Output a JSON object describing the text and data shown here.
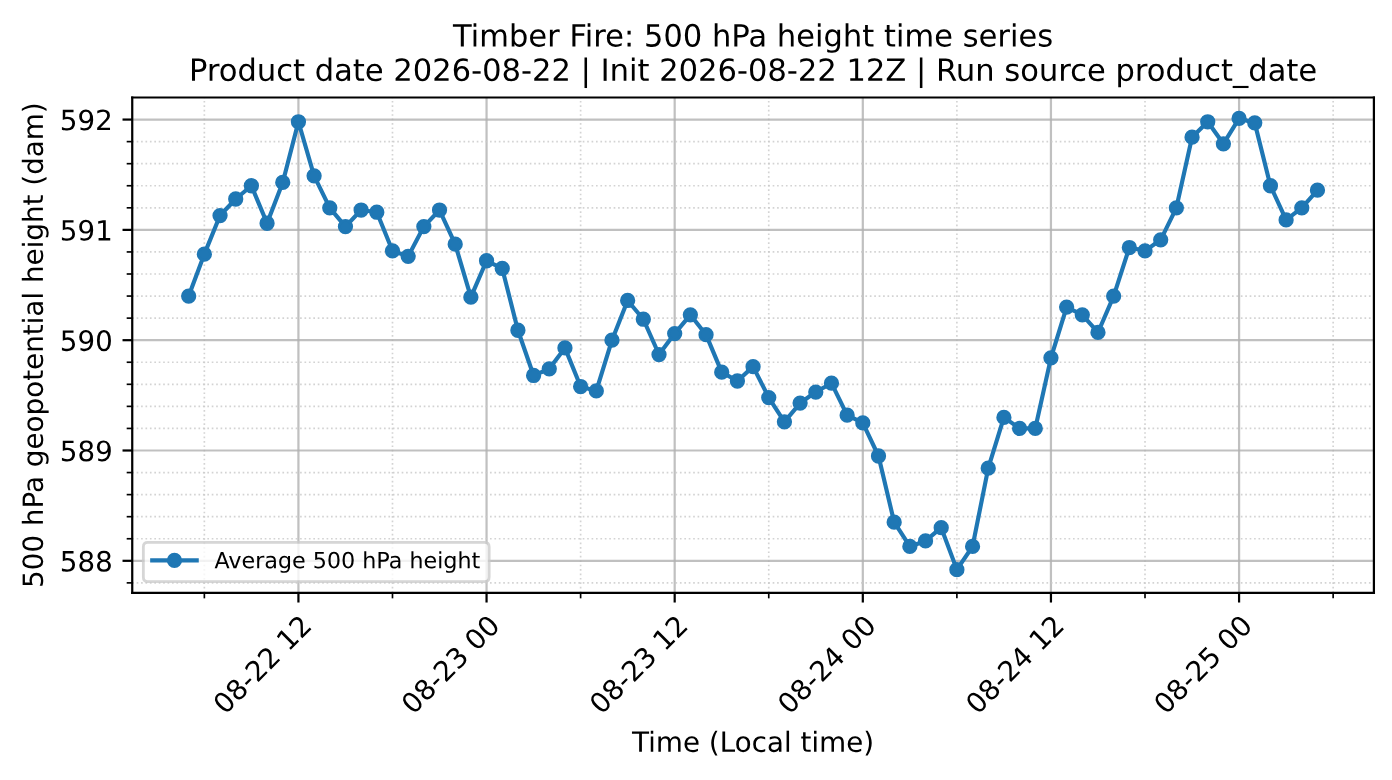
{
  "chart_data": {
    "type": "line",
    "title": "Timber Fire: 500 hPa height time series\nProduct date 2026-08-22 | Init 2026-08-22 12Z | Run source product_date",
    "xlabel": "Time (Local time)",
    "ylabel": "500 hPa geopotential height (dam)",
    "x": [
      "2026-08-22T05:00",
      "2026-08-22T06:00",
      "2026-08-22T07:00",
      "2026-08-22T08:00",
      "2026-08-22T09:00",
      "2026-08-22T10:00",
      "2026-08-22T11:00",
      "2026-08-22T12:00",
      "2026-08-22T13:00",
      "2026-08-22T14:00",
      "2026-08-22T15:00",
      "2026-08-22T16:00",
      "2026-08-22T17:00",
      "2026-08-22T18:00",
      "2026-08-22T19:00",
      "2026-08-22T20:00",
      "2026-08-22T21:00",
      "2026-08-22T22:00",
      "2026-08-22T23:00",
      "2026-08-23T00:00",
      "2026-08-23T01:00",
      "2026-08-23T02:00",
      "2026-08-23T03:00",
      "2026-08-23T04:00",
      "2026-08-23T05:00",
      "2026-08-23T06:00",
      "2026-08-23T07:00",
      "2026-08-23T08:00",
      "2026-08-23T09:00",
      "2026-08-23T10:00",
      "2026-08-23T11:00",
      "2026-08-23T12:00",
      "2026-08-23T13:00",
      "2026-08-23T14:00",
      "2026-08-23T15:00",
      "2026-08-23T16:00",
      "2026-08-23T17:00",
      "2026-08-23T18:00",
      "2026-08-23T19:00",
      "2026-08-23T20:00",
      "2026-08-23T21:00",
      "2026-08-23T22:00",
      "2026-08-23T23:00",
      "2026-08-24T00:00",
      "2026-08-24T01:00",
      "2026-08-24T02:00",
      "2026-08-24T03:00",
      "2026-08-24T04:00",
      "2026-08-24T05:00",
      "2026-08-24T06:00",
      "2026-08-24T07:00",
      "2026-08-24T08:00",
      "2026-08-24T09:00",
      "2026-08-24T10:00",
      "2026-08-24T11:00",
      "2026-08-24T12:00",
      "2026-08-24T13:00",
      "2026-08-24T14:00",
      "2026-08-24T15:00",
      "2026-08-24T16:00",
      "2026-08-24T17:00",
      "2026-08-24T18:00",
      "2026-08-24T19:00",
      "2026-08-24T20:00",
      "2026-08-24T21:00",
      "2026-08-24T22:00",
      "2026-08-24T23:00",
      "2026-08-25T00:00",
      "2026-08-25T01:00",
      "2026-08-25T02:00",
      "2026-08-25T03:00",
      "2026-08-25T04:00",
      "2026-08-25T05:00"
    ],
    "series": [
      {
        "name": "Average 500 hPa height",
        "color": "#1f77b4",
        "values": [
          590.4,
          590.78,
          591.13,
          591.28,
          591.4,
          591.06,
          591.43,
          591.98,
          591.49,
          591.2,
          591.03,
          591.18,
          591.16,
          590.81,
          590.76,
          591.03,
          591.18,
          590.87,
          590.39,
          590.72,
          590.65,
          590.09,
          589.68,
          589.74,
          589.93,
          589.58,
          589.54,
          590.0,
          590.36,
          590.19,
          589.87,
          590.06,
          590.23,
          590.05,
          589.71,
          589.63,
          589.76,
          589.48,
          589.26,
          589.43,
          589.53,
          589.61,
          589.32,
          589.25,
          588.95,
          588.35,
          588.13,
          588.18,
          588.3,
          587.92,
          588.13,
          588.84,
          589.3,
          589.2,
          589.2,
          589.84,
          590.3,
          590.23,
          590.07,
          590.4,
          590.84,
          590.81,
          590.91,
          591.2,
          591.84,
          591.98,
          591.78,
          592.01,
          591.97,
          591.4,
          591.09,
          591.2,
          591.36
        ]
      }
    ],
    "xlim": [
      "2026-08-22T01:24",
      "2026-08-25T08:36"
    ],
    "xticks": [
      {
        "value": "2026-08-22T06:00",
        "label": null
      },
      {
        "value": "2026-08-22T12:00",
        "label": "08-22 12"
      },
      {
        "value": "2026-08-22T18:00",
        "label": null
      },
      {
        "value": "2026-08-23T00:00",
        "label": "08-23 00"
      },
      {
        "value": "2026-08-23T06:00",
        "label": null
      },
      {
        "value": "2026-08-23T12:00",
        "label": "08-23 12"
      },
      {
        "value": "2026-08-23T18:00",
        "label": null
      },
      {
        "value": "2026-08-24T00:00",
        "label": "08-24 00"
      },
      {
        "value": "2026-08-24T06:00",
        "label": null
      },
      {
        "value": "2026-08-24T12:00",
        "label": "08-24 12"
      },
      {
        "value": "2026-08-24T18:00",
        "label": null
      },
      {
        "value": "2026-08-25T00:00",
        "label": "08-25 00"
      },
      {
        "value": "2026-08-25T06:00",
        "label": null
      }
    ],
    "ylim": [
      587.71,
      592.2
    ],
    "yticks": [
      {
        "value": 587.8,
        "label": null
      },
      588,
      {
        "value": 588.2,
        "label": null
      },
      {
        "value": 588.4,
        "label": null
      },
      {
        "value": 588.6,
        "label": null
      },
      {
        "value": 588.8,
        "label": null
      },
      589,
      {
        "value": 589.2,
        "label": null
      },
      {
        "value": 589.4,
        "label": null
      },
      {
        "value": 589.6,
        "label": null
      },
      {
        "value": 589.8,
        "label": null
      },
      590,
      {
        "value": 590.2,
        "label": null
      },
      {
        "value": 590.4,
        "label": null
      },
      {
        "value": 590.6,
        "label": null
      },
      {
        "value": 590.8,
        "label": null
      },
      591,
      {
        "value": 591.2,
        "label": null
      },
      {
        "value": 591.4,
        "label": null
      },
      {
        "value": 591.6,
        "label": null
      },
      {
        "value": 591.8,
        "label": null
      },
      592
    ],
    "grid": true,
    "legend": "lower left",
    "marker": "circle",
    "line_style": "solid"
  }
}
